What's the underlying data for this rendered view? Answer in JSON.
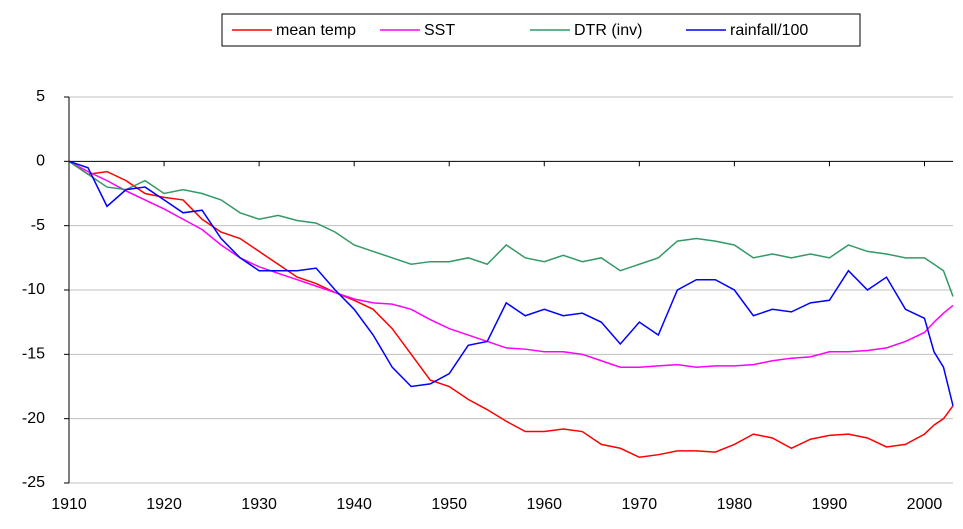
{
  "chart_data": {
    "type": "line",
    "x": [
      1910,
      1912,
      1914,
      1916,
      1918,
      1920,
      1922,
      1924,
      1926,
      1928,
      1930,
      1932,
      1934,
      1936,
      1938,
      1940,
      1942,
      1944,
      1946,
      1948,
      1950,
      1952,
      1954,
      1956,
      1958,
      1960,
      1962,
      1964,
      1966,
      1968,
      1970,
      1972,
      1974,
      1976,
      1978,
      1980,
      1982,
      1984,
      1986,
      1988,
      1990,
      1992,
      1994,
      1996,
      1998,
      2000,
      2001,
      2002,
      2003
    ],
    "series": [
      {
        "name": "mean temp",
        "color": "#ff0000",
        "values": [
          0,
          -1,
          -0.8,
          -1.5,
          -2.5,
          -2.8,
          -3,
          -4.5,
          -5.5,
          -6,
          -7,
          -8,
          -9,
          -9.5,
          -10.2,
          -10.8,
          -11.5,
          -13,
          -15,
          -17,
          -17.5,
          -18.5,
          -19.3,
          -20.2,
          -21,
          -21,
          -20.8,
          -21,
          -22,
          -22.3,
          -23,
          -22.8,
          -22.5,
          -22.5,
          -22.6,
          -22,
          -21.2,
          -21.5,
          -22.3,
          -21.6,
          -21.3,
          -21.2,
          -21.5,
          -22.2,
          -22,
          -21.2,
          -20.5,
          -20,
          -19
        ]
      },
      {
        "name": "SST",
        "color": "#ff00ff",
        "values": [
          0,
          -0.8,
          -1.5,
          -2.3,
          -3,
          -3.7,
          -4.5,
          -5.3,
          -6.5,
          -7.5,
          -8.2,
          -8.7,
          -9.2,
          -9.7,
          -10.2,
          -10.7,
          -11,
          -11.1,
          -11.5,
          -12.3,
          -13,
          -13.5,
          -14,
          -14.5,
          -14.6,
          -14.8,
          -14.8,
          -15,
          -15.5,
          -16,
          -16,
          -15.9,
          -15.8,
          -16,
          -15.9,
          -15.9,
          -15.8,
          -15.5,
          -15.3,
          -15.2,
          -14.8,
          -14.8,
          -14.7,
          -14.5,
          -14,
          -13.3,
          -12.5,
          -11.8,
          -11.2
        ]
      },
      {
        "name": "DTR (inv)",
        "color": "#339966",
        "values": [
          0,
          -1,
          -2,
          -2.2,
          -1.5,
          -2.5,
          -2.2,
          -2.5,
          -3,
          -4,
          -4.5,
          -4.2,
          -4.6,
          -4.8,
          -5.5,
          -6.5,
          -7,
          -7.5,
          -8,
          -7.8,
          -7.8,
          -7.5,
          -8,
          -6.5,
          -7.5,
          -7.8,
          -7.3,
          -7.8,
          -7.5,
          -8.5,
          -8,
          -7.5,
          -6.2,
          -6,
          -6.2,
          -6.5,
          -7.5,
          -7.2,
          -7.5,
          -7.2,
          -7.5,
          -6.5,
          -7,
          -7.2,
          -7.5,
          -7.5,
          -8,
          -8.5,
          -10.5
        ]
      },
      {
        "name": "rainfall/100",
        "color": "#0000ff",
        "values": [
          0,
          -0.5,
          -3.5,
          -2.2,
          -2,
          -3,
          -4,
          -3.8,
          -6,
          -7.5,
          -8.5,
          -8.5,
          -8.5,
          -8.3,
          -10,
          -11.5,
          -13.5,
          -16,
          -17.5,
          -17.3,
          -16.5,
          -14.3,
          -14,
          -11,
          -12,
          -11.5,
          -12,
          -11.8,
          -12.5,
          -14.2,
          -12.5,
          -13.5,
          -10,
          -9.2,
          -9.2,
          -10,
          -12,
          -11.5,
          -11.7,
          -11,
          -10.8,
          -8.5,
          -10,
          -9,
          -11.5,
          -12.2,
          -14.8,
          -16,
          -19
        ]
      }
    ],
    "xlim": [
      1910,
      2003
    ],
    "xticks": [
      1910,
      1920,
      1930,
      1940,
      1950,
      1960,
      1970,
      1980,
      1990,
      2000
    ],
    "ylim": [
      -25,
      5
    ],
    "yticks": [
      5,
      0,
      -5,
      -10,
      -15,
      -20,
      -25
    ],
    "grid": true,
    "legend": "top"
  }
}
